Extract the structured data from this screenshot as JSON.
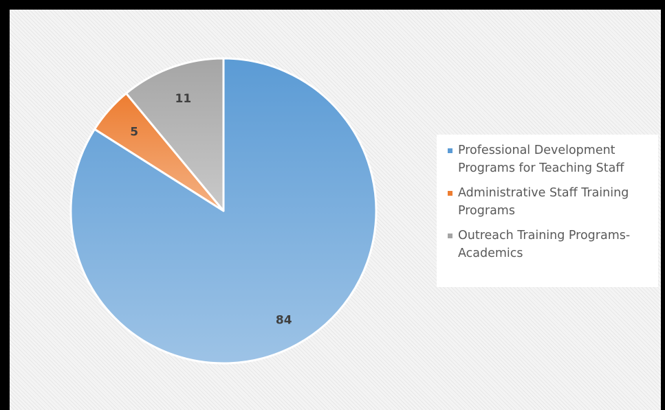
{
  "chart_data": {
    "type": "pie",
    "title": "",
    "legend_position": "right",
    "slices": [
      {
        "label": "Professional Development Programs for Teaching Staff",
        "value": 84,
        "color": "#5b9bd5"
      },
      {
        "label": "Administrative Staff Training Programs",
        "value": 5,
        "color": "#ed7d31"
      },
      {
        "label": "Outreach Training Programs-Academics",
        "value": 11,
        "color": "#a5a5a5"
      }
    ]
  }
}
